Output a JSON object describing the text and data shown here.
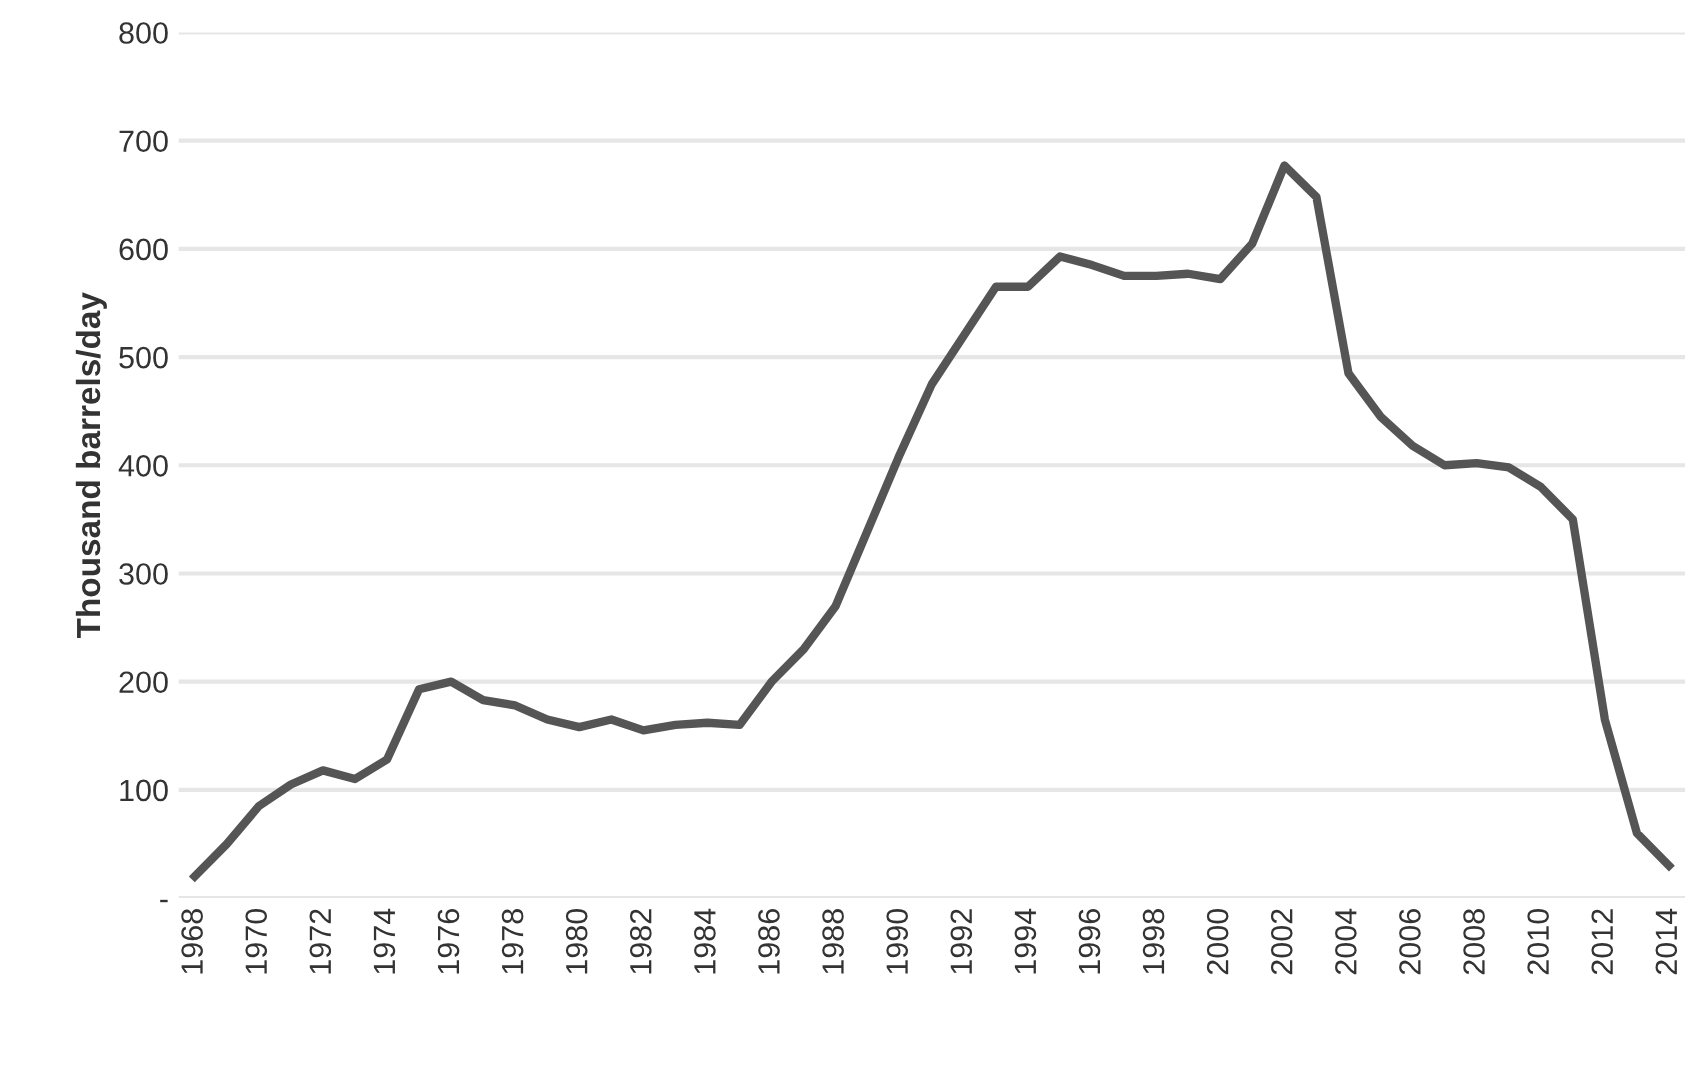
{
  "chart_data": {
    "type": "line",
    "ylabel": "Thousand barrels/day",
    "x": [
      1968,
      1969,
      1970,
      1971,
      1972,
      1973,
      1974,
      1975,
      1976,
      1977,
      1978,
      1979,
      1980,
      1981,
      1982,
      1983,
      1984,
      1985,
      1986,
      1987,
      1988,
      1989,
      1990,
      1991,
      1992,
      1993,
      1994,
      1995,
      1996,
      1997,
      1998,
      1999,
      2000,
      2001,
      2002,
      2003,
      2004,
      2005,
      2006,
      2007,
      2008,
      2009,
      2010,
      2011,
      2012,
      2013,
      2014
    ],
    "series": [
      {
        "color": "#555555",
        "values": [
          20,
          50,
          85,
          105,
          118,
          110,
          128,
          193,
          200,
          183,
          178,
          165,
          158,
          165,
          155,
          160,
          162,
          160,
          200,
          230,
          270,
          340,
          410,
          475,
          520,
          565,
          565,
          593,
          585,
          575,
          575,
          577,
          572,
          605,
          677,
          648,
          485,
          445,
          418,
          400,
          402,
          398,
          380,
          350,
          165,
          60,
          30
        ]
      }
    ],
    "xlim": [
      1967.5,
      2014.5
    ],
    "xticks": [
      1968,
      1970,
      1972,
      1974,
      1976,
      1978,
      1980,
      1982,
      1984,
      1986,
      1988,
      1990,
      1992,
      1994,
      1996,
      1998,
      2000,
      2002,
      2004,
      2006,
      2008,
      2010,
      2012,
      2014
    ],
    "ylim": [
      0,
      800
    ],
    "yticks": [
      {
        "value": 0,
        "label": "-"
      },
      100,
      200,
      300,
      400,
      500,
      600,
      700,
      800
    ],
    "grid": "y",
    "marker": "none",
    "line_style": "solid"
  }
}
